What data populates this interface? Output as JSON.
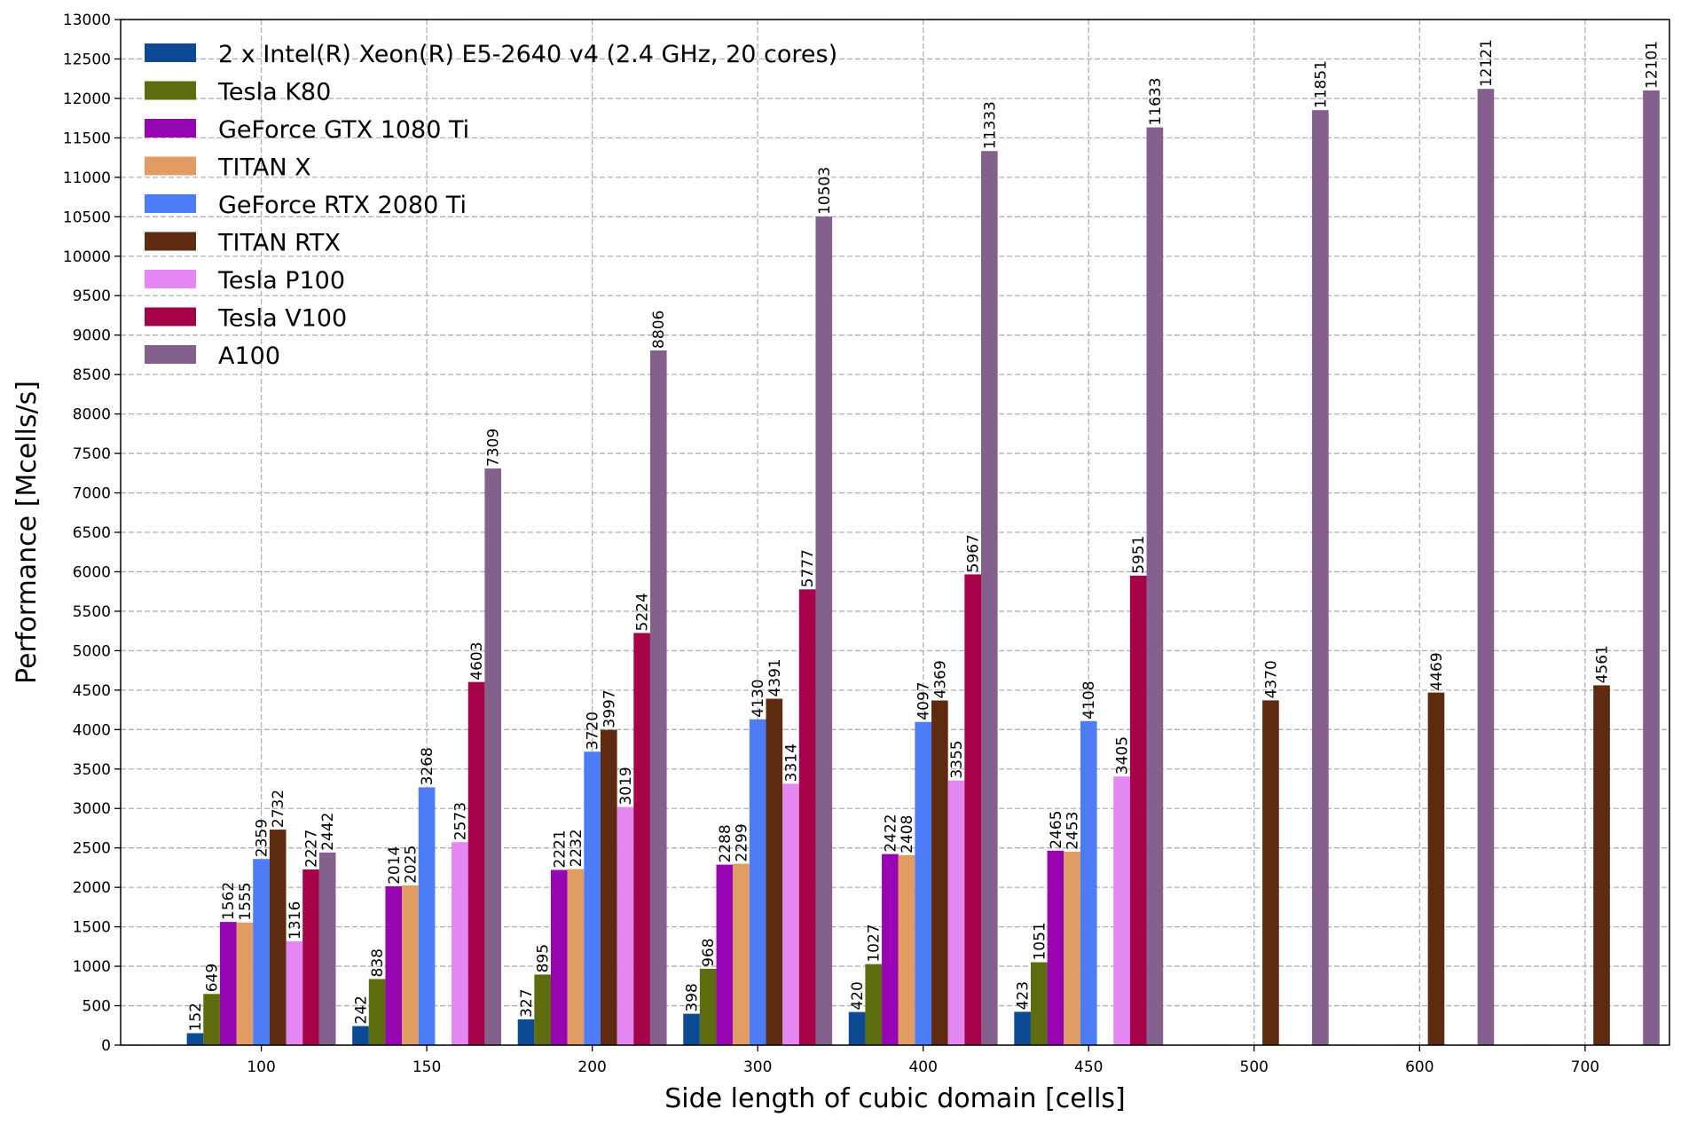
{
  "chart_data": {
    "type": "bar",
    "xlabel": "Side length of cubic domain [cells]",
    "ylabel": "Performance [Mcells/s]",
    "ylim": [
      0,
      13000
    ],
    "ytick_step": 500,
    "grid": true,
    "legend_position": "upper-left",
    "categories": [
      "100",
      "150",
      "200",
      "300",
      "400",
      "450",
      "500",
      "600",
      "700"
    ],
    "series": [
      {
        "name": "2 x Intel(R) Xeon(R) E5-2640 v4 (2.4 GHz, 20 cores)",
        "color": "#0d4a94",
        "values": [
          152,
          242,
          327,
          398,
          420,
          423,
          null,
          null,
          null
        ]
      },
      {
        "name": "Tesla K80",
        "color": "#5e6b0e",
        "values": [
          649,
          838,
          895,
          968,
          1027,
          1051,
          null,
          null,
          null
        ]
      },
      {
        "name": "GeForce GTX 1080 Ti",
        "color": "#9605b1",
        "values": [
          1562,
          2014,
          2221,
          2288,
          2422,
          2465,
          null,
          null,
          null
        ]
      },
      {
        "name": "TITAN X",
        "color": "#e09c63",
        "values": [
          1555,
          2025,
          2232,
          2299,
          2408,
          2453,
          null,
          null,
          null
        ]
      },
      {
        "name": "GeForce RTX 2080 Ti",
        "color": "#4d7df6",
        "values": [
          2359,
          3268,
          3720,
          4130,
          4097,
          4108,
          null,
          null,
          null
        ]
      },
      {
        "name": "TITAN RTX",
        "color": "#5e2b10",
        "values": [
          2732,
          null,
          3997,
          4391,
          4369,
          null,
          4370,
          4469,
          4561
        ]
      },
      {
        "name": "Tesla P100",
        "color": "#e487f2",
        "values": [
          1316,
          2573,
          3019,
          3314,
          3355,
          3405,
          null,
          null,
          null
        ]
      },
      {
        "name": "Tesla V100",
        "color": "#a5024a",
        "values": [
          2227,
          4603,
          5224,
          5777,
          5967,
          5951,
          null,
          null,
          null
        ]
      },
      {
        "name": "A100",
        "color": "#83618c",
        "values": [
          2442,
          7309,
          8806,
          10503,
          11333,
          11633,
          11851,
          12121,
          12101
        ]
      }
    ]
  }
}
